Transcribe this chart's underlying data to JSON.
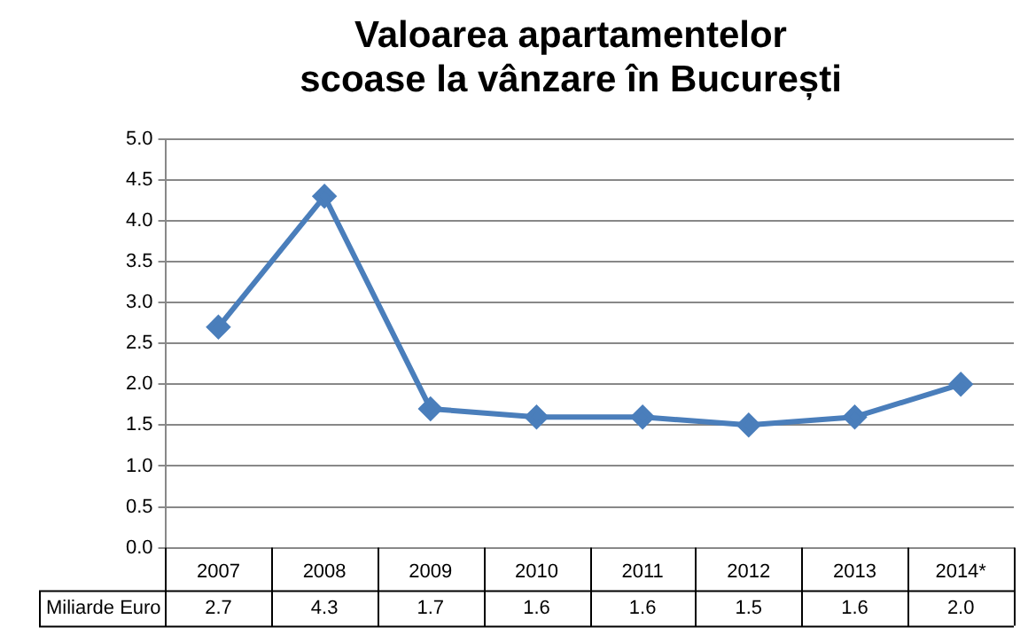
{
  "chart_data": {
    "type": "line",
    "title": "Valoarea apartamentelor\nscoase la vânzare în București",
    "categories": [
      "2007",
      "2008",
      "2009",
      "2010",
      "2011",
      "2012",
      "2013",
      "2014*"
    ],
    "series": [
      {
        "name": "Miliarde Euro",
        "color": "#4a7ebb",
        "values": [
          2.7,
          4.3,
          1.7,
          1.6,
          1.6,
          1.5,
          1.6,
          2.0
        ],
        "value_labels": [
          "2.7",
          "4.3",
          "1.7",
          "1.6",
          "1.6",
          "1.5",
          "1.6",
          "2.0"
        ]
      }
    ],
    "ylim": [
      0,
      5
    ],
    "yticks": [
      {
        "value": 0,
        "label": "0.0"
      },
      {
        "value": 0.5,
        "label": "0.5"
      },
      {
        "value": 1,
        "label": "1.0"
      },
      {
        "value": 1.5,
        "label": "1.5"
      },
      {
        "value": 2,
        "label": "2.0"
      },
      {
        "value": 2.5,
        "label": "2.5"
      },
      {
        "value": 3,
        "label": "3.0"
      },
      {
        "value": 3.5,
        "label": "3.5"
      },
      {
        "value": 4,
        "label": "4.0"
      },
      {
        "value": 4.5,
        "label": "4.5"
      },
      {
        "value": 5,
        "label": "5.0"
      }
    ],
    "grid": "y",
    "marker": "diamond",
    "line_style": "solid",
    "legend": false
  }
}
